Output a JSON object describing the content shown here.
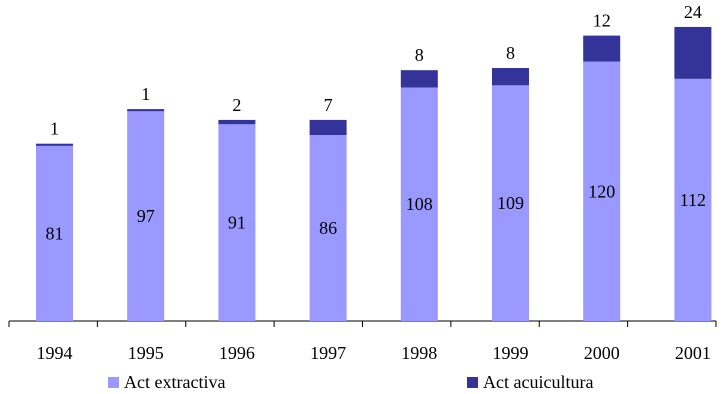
{
  "chart_data": {
    "type": "bar",
    "stacked": true,
    "categories": [
      "1994",
      "1995",
      "1996",
      "1997",
      "1998",
      "1999",
      "2000",
      "2001"
    ],
    "series": [
      {
        "name": "Act extractiva",
        "values": [
          81,
          97,
          91,
          86,
          108,
          109,
          120,
          112
        ],
        "color": "#9999ff"
      },
      {
        "name": "Act acuicultura",
        "values": [
          1,
          1,
          2,
          7,
          8,
          8,
          12,
          24
        ],
        "color": "#333399"
      }
    ],
    "title": "",
    "xlabel": "",
    "ylabel": "",
    "ylim": [
      0,
      148
    ],
    "grid": false,
    "legend_position": "bottom"
  }
}
